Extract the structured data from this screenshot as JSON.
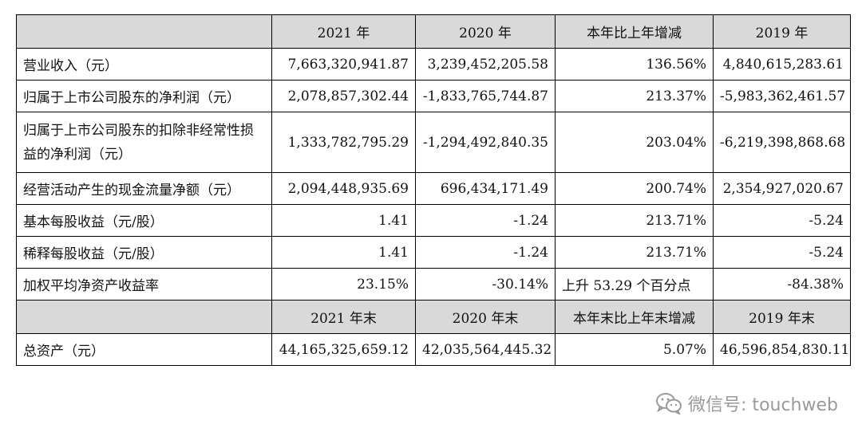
{
  "table": {
    "header1": [
      "",
      "2021 年",
      "2020 年",
      "本年比上年增减",
      "2019 年"
    ],
    "rows1": [
      {
        "label": "营业收入（元）",
        "v2021": "7,663,320,941.87",
        "v2020": "3,239,452,205.58",
        "change": "136.56%",
        "v2019": "4,840,615,283.61"
      },
      {
        "label": "归属于上市公司股东的净利润（元）",
        "v2021": "2,078,857,302.44",
        "v2020": "-1,833,765,744.87",
        "change": "213.37%",
        "v2019": "-5,983,362,461.57"
      },
      {
        "label": "归属于上市公司股东的扣除非经常性损益的净利润（元）",
        "v2021": "1,333,782,795.29",
        "v2020": "-1,294,492,840.35",
        "change": "203.04%",
        "v2019": "-6,219,398,868.68"
      },
      {
        "label": "经营活动产生的现金流量净额（元）",
        "v2021": "2,094,448,935.69",
        "v2020": "696,434,171.49",
        "change": "200.74%",
        "v2019": "2,354,927,020.67"
      },
      {
        "label": "基本每股收益（元/股）",
        "v2021": "1.41",
        "v2020": "-1.24",
        "change": "213.71%",
        "v2019": "-5.24"
      },
      {
        "label": "稀释每股收益（元/股）",
        "v2021": "1.41",
        "v2020": "-1.24",
        "change": "213.71%",
        "v2019": "-5.24"
      },
      {
        "label": "加权平均净资产收益率",
        "v2021": "23.15%",
        "v2020": "-30.14%",
        "change": "上升 53.29 个百分点",
        "v2019": "-84.38%"
      }
    ],
    "header2": [
      "",
      "2021 年末",
      "2020 年末",
      "本年末比上年末增减",
      "2019 年末"
    ],
    "rows2": [
      {
        "label": "总资产（元）",
        "v2021": "44,165,325,659.12",
        "v2020": "42,035,564,445.32",
        "change": "5.07%",
        "v2019": "46,596,854,830.11"
      }
    ]
  },
  "watermark": {
    "text": "微信号: touchweb",
    "icon": "wechat-icon",
    "color": "#9a9a9a"
  },
  "colors": {
    "header_bg": "#d9d9d9",
    "border": "#000000"
  }
}
